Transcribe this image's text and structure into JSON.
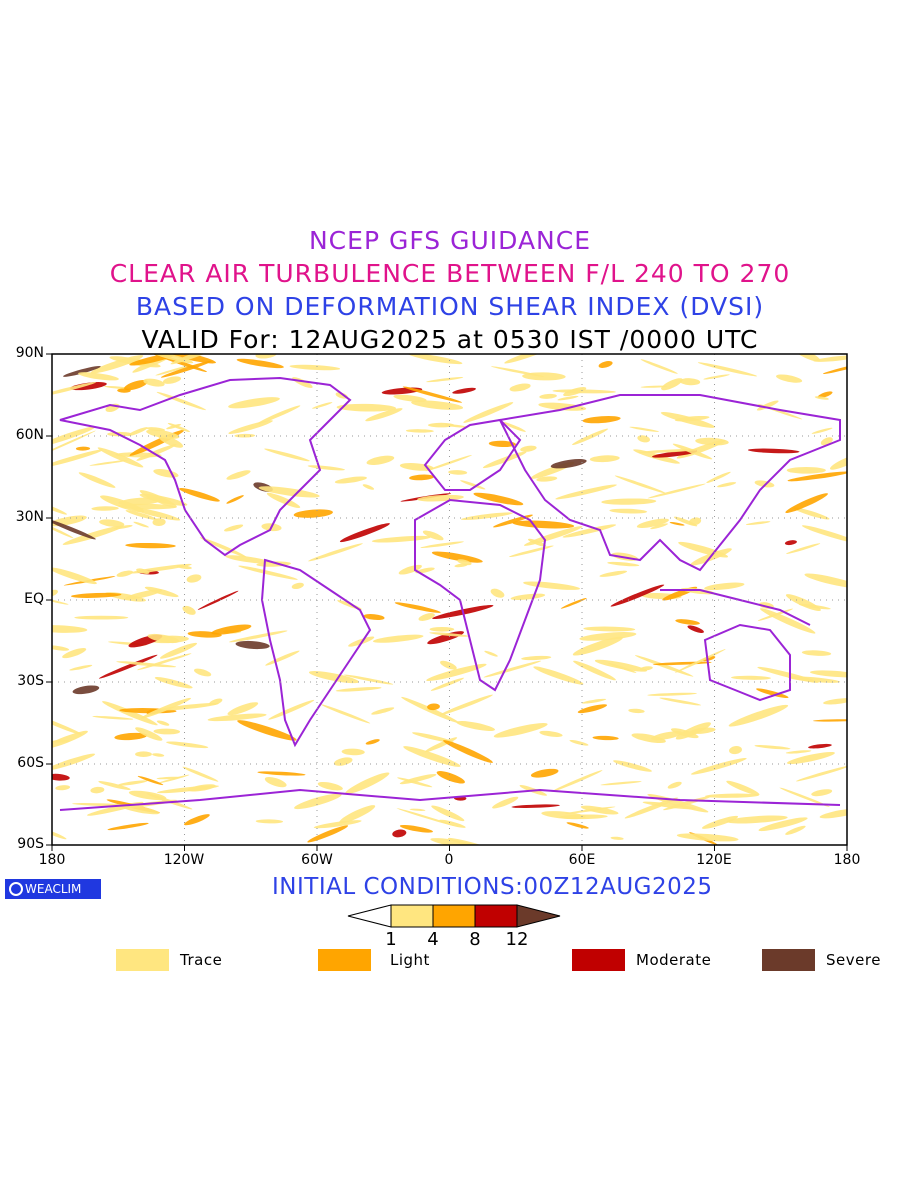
{
  "titles": {
    "line1": "NCEP GFS GUIDANCE",
    "line2": "CLEAR AIR TURBULENCE BETWEEN F/L 240 TO 270",
    "line3": "BASED ON DEFORMATION SHEAR INDEX (DVSI)",
    "line4": "VALID For: 12AUG2025 at 0530 IST /0000 UTC"
  },
  "axes": {
    "lat_labels": [
      "90N",
      "60N",
      "30N",
      "EQ",
      "30S",
      "60S",
      "90S"
    ],
    "lon_labels": [
      "180",
      "120W",
      "60W",
      "0",
      "60E",
      "120E",
      "180"
    ]
  },
  "logo": "WEACLIM",
  "initial_conditions": "INITIAL CONDITIONS:00Z12AUG2025",
  "colorbar": {
    "ticks": [
      "1",
      "4",
      "8",
      "12"
    ],
    "colors": [
      "#ffe680",
      "#ffa500",
      "#c00000",
      "#6b3a2a"
    ]
  },
  "legend": [
    {
      "label": "Trace",
      "color": "#ffe680"
    },
    {
      "label": "Light",
      "color": "#ffa500"
    },
    {
      "label": "Moderate",
      "color": "#c00000"
    },
    {
      "label": "Severe",
      "color": "#6b3a2a"
    }
  ],
  "colors": {
    "coastline": "#9b24d6",
    "title1": "#9b24d6",
    "title2": "#e0138b",
    "title3": "#2e42e6"
  }
}
